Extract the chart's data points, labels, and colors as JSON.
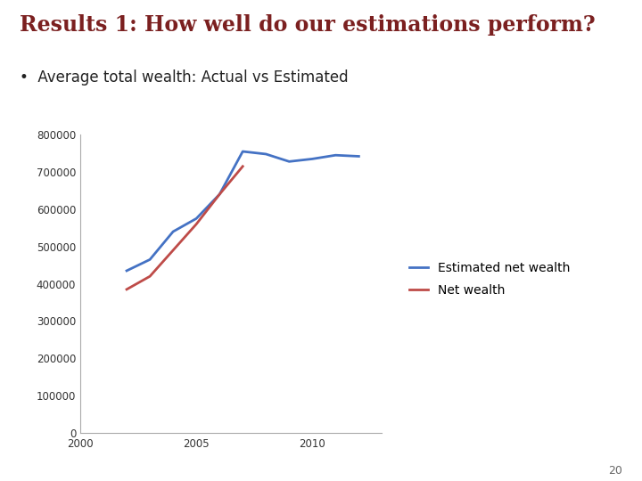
{
  "title": "Results 1: How well do our estimations perform?",
  "subtitle": "Average total wealth: Actual vs Estimated",
  "title_color": "#7B2020",
  "subtitle_color": "#222222",
  "background_color": "#ffffff",
  "xlim": [
    2000,
    2013
  ],
  "ylim": [
    0,
    800000
  ],
  "yticks": [
    0,
    100000,
    200000,
    300000,
    400000,
    500000,
    600000,
    700000,
    800000
  ],
  "xticks": [
    2000,
    2005,
    2010
  ],
  "estimated_x": [
    2002,
    2003,
    2004,
    2005,
    2006,
    2007,
    2008,
    2009,
    2010,
    2011,
    2012
  ],
  "estimated_y": [
    435000,
    465000,
    540000,
    575000,
    640000,
    755000,
    748000,
    728000,
    735000,
    745000,
    742000
  ],
  "actual_x": [
    2002,
    2003,
    2004,
    2005,
    2006,
    2007
  ],
  "actual_y": [
    385000,
    420000,
    490000,
    560000,
    640000,
    715000
  ],
  "estimated_color": "#4472C4",
  "actual_color": "#BE4B48",
  "legend_estimated": "Estimated net wealth",
  "legend_actual": "Net wealth",
  "line_width": 2.0,
  "page_number": "20"
}
